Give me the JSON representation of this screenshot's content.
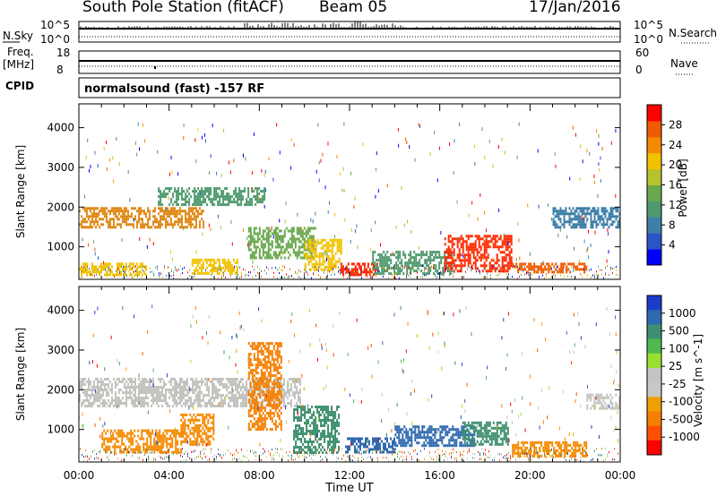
{
  "header": {
    "station": "South Pole Station (fitACF)",
    "beam": "Beam 05",
    "date": "17/Jan/2016"
  },
  "top_panels": {
    "nsky_label": "N.Sky",
    "nsky_ticks": [
      "10^5",
      "10^0"
    ],
    "nsearch_label": "N.Search",
    "nsearch_ticks": [
      "10^5",
      "10^0"
    ],
    "freq_label_1": "Freq.",
    "freq_label_2": "[MHz]",
    "freq_ticks": [
      "18",
      "8"
    ],
    "nave_label": "Nave",
    "nave_ticks": [
      "60",
      "0"
    ],
    "cpid_label": "CPID",
    "cpid_text": "normalsound (fast) -157 RF"
  },
  "chart_data": [
    {
      "type": "heatmap",
      "panel": "power",
      "xlabel": "",
      "ylabel": "Slant Range [km]",
      "x_ticks": [
        "00:00",
        "04:00",
        "08:00",
        "12:00",
        "16:00",
        "20:00",
        "00:00"
      ],
      "y_ticks": [
        "1000",
        "2000",
        "3000",
        "4000"
      ],
      "xlim_hours": [
        0,
        24
      ],
      "ylim_km": [
        180,
        4600
      ],
      "colorbar": {
        "label": "Power [dB]",
        "ticks": [
          "4",
          "8",
          "12",
          "16",
          "20",
          "24",
          "28"
        ],
        "colors": [
          "#0000ff",
          "#2a55c6",
          "#3e7fa8",
          "#4f9a6e",
          "#6aa84f",
          "#b6c22e",
          "#f2c200",
          "#f58a00",
          "#f05a00",
          "#ff0000"
        ]
      },
      "echo_bands": [
        {
          "t0": 0.0,
          "t1": 5.5,
          "r0": 1500,
          "r1": 2000,
          "c": "#e08a1a"
        },
        {
          "t0": 3.5,
          "t1": 8.2,
          "r0": 2050,
          "r1": 2500,
          "c": "#4f9a6e"
        },
        {
          "t0": 5.0,
          "t1": 7.0,
          "r0": 300,
          "r1": 700,
          "c": "#f2c200"
        },
        {
          "t0": 7.5,
          "t1": 10.5,
          "r0": 700,
          "r1": 1500,
          "c": "#6aa84f"
        },
        {
          "t0": 10.0,
          "t1": 11.6,
          "r0": 400,
          "r1": 1200,
          "c": "#f2c200"
        },
        {
          "t0": 11.6,
          "t1": 13.2,
          "r0": 300,
          "r1": 600,
          "c": "#ff2000"
        },
        {
          "t0": 13.0,
          "t1": 16.5,
          "r0": 350,
          "r1": 900,
          "c": "#4f9a6e"
        },
        {
          "t0": 16.2,
          "t1": 19.2,
          "r0": 400,
          "r1": 1300,
          "c": "#ff2a00"
        },
        {
          "t0": 19.2,
          "t1": 22.5,
          "r0": 350,
          "r1": 600,
          "c": "#f05a00"
        },
        {
          "t0": 21.0,
          "t1": 24.0,
          "r0": 1500,
          "r1": 2000,
          "c": "#3e7fa8"
        },
        {
          "t0": 0.0,
          "t1": 3.0,
          "r0": 300,
          "r1": 600,
          "c": "#f2c200"
        }
      ]
    },
    {
      "type": "heatmap",
      "panel": "velocity",
      "xlabel": "Time UT",
      "ylabel": "Slant Range [km]",
      "x_ticks": [
        "00:00",
        "04:00",
        "08:00",
        "12:00",
        "16:00",
        "20:00",
        "00:00"
      ],
      "y_ticks": [
        "1000",
        "2000",
        "3000",
        "4000"
      ],
      "xlim_hours": [
        0,
        24
      ],
      "ylim_km": [
        180,
        4600
      ],
      "colorbar": {
        "label": "Velocity [m s^-1]",
        "ticks": [
          "1000",
          "500",
          "100",
          "25",
          "-25",
          "-100",
          "-500",
          "-1000"
        ],
        "colors": [
          "#1b3cc8",
          "#2f69b0",
          "#3e8f6f",
          "#4fb84f",
          "#9ae030",
          "#c4c4c0",
          "#c8c8c4",
          "#f0a000",
          "#f57f00",
          "#ff5000",
          "#ff0000"
        ]
      },
      "echo_bands": [
        {
          "t0": 0.0,
          "t1": 9.8,
          "r0": 1600,
          "r1": 2300,
          "c": "#c4c4c0"
        },
        {
          "t0": 1.0,
          "t1": 4.5,
          "r0": 400,
          "r1": 1000,
          "c": "#f58a00"
        },
        {
          "t0": 4.5,
          "t1": 6.0,
          "r0": 600,
          "r1": 1400,
          "c": "#f58a00"
        },
        {
          "t0": 7.5,
          "t1": 9.0,
          "r0": 1000,
          "r1": 3200,
          "c": "#f57f00"
        },
        {
          "t0": 9.5,
          "t1": 11.5,
          "r0": 400,
          "r1": 1600,
          "c": "#3e8f6f"
        },
        {
          "t0": 11.8,
          "t1": 14.0,
          "r0": 400,
          "r1": 800,
          "c": "#2f69b0"
        },
        {
          "t0": 14.0,
          "t1": 17.5,
          "r0": 600,
          "r1": 1100,
          "c": "#2f69b0"
        },
        {
          "t0": 17.0,
          "t1": 19.0,
          "r0": 600,
          "r1": 1200,
          "c": "#3e8f6f"
        },
        {
          "t0": 19.2,
          "t1": 22.5,
          "r0": 350,
          "r1": 700,
          "c": "#f58a00"
        },
        {
          "t0": 22.5,
          "t1": 24.0,
          "r0": 1500,
          "r1": 1900,
          "c": "#c4c4c0"
        }
      ]
    }
  ]
}
